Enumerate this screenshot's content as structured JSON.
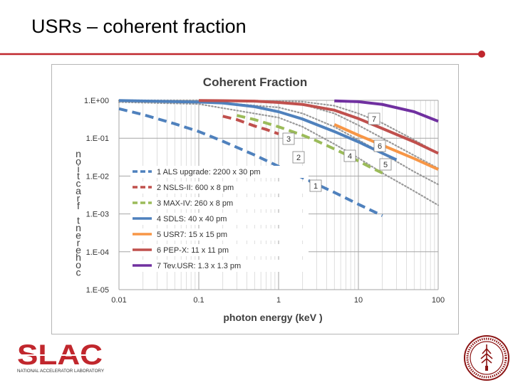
{
  "slide": {
    "title": "USRs – coherent fraction"
  },
  "colors": {
    "accent_rule": "#c0272d",
    "slac_red": "#c1272d"
  },
  "logos": {
    "slac_wordmark": "SLAC",
    "slac_subtitle": "NATIONAL ACCELERATOR LABORATORY"
  },
  "chart_data": {
    "type": "line",
    "title": "Coherent Fraction",
    "xlabel": "photon energy (keV )",
    "ylabel": "noitcarf tnerehoc",
    "x_scale": "log",
    "y_scale": "log",
    "xlim": [
      0.01,
      100
    ],
    "ylim": [
      1e-05,
      1
    ],
    "x_ticks": [
      "0.01",
      "0.1",
      "1",
      "10",
      "100"
    ],
    "y_ticks": [
      "1.E+00",
      "1.E-01",
      "1.E-02",
      "1.E-03",
      "1.E-04",
      "1.E-05"
    ],
    "grid": true,
    "legend_position": "left",
    "series": [
      {
        "name": "1 ALS upgrade: 2200 x 30 pm",
        "label": "1",
        "color": "#4f81bd",
        "style": "dashed",
        "x": [
          0.01,
          0.02,
          0.05,
          0.1,
          0.2,
          0.5,
          1,
          2,
          5,
          10,
          20
        ],
        "y": [
          0.6,
          0.42,
          0.24,
          0.15,
          0.083,
          0.036,
          0.018,
          0.009,
          0.0037,
          0.0018,
          0.0009
        ]
      },
      {
        "name": "2 NSLS-II: 600 x 8 pm",
        "label": "2",
        "color": "#c0504d",
        "style": "dashed",
        "x": [
          0.2,
          0.3,
          0.5,
          0.7,
          1
        ],
        "y": [
          0.38,
          0.31,
          0.21,
          0.17,
          0.13
        ]
      },
      {
        "name": "3 MAX-IV: 260 x 8 pm",
        "label": "3",
        "color": "#9bbb59",
        "style": "dashed",
        "x": [
          0.3,
          0.5,
          1,
          2,
          3,
          5,
          7,
          10,
          15,
          20
        ],
        "y": [
          0.4,
          0.31,
          0.2,
          0.12,
          0.085,
          0.052,
          0.037,
          0.025,
          0.016,
          0.012
        ]
      },
      {
        "name": "4 SDLS: 40 x 40 pm",
        "label": "4",
        "color": "#4f81bd",
        "style": "solid",
        "x": [
          0.01,
          0.1,
          0.2,
          0.5,
          1,
          2,
          5,
          10,
          20,
          30
        ],
        "y": [
          0.99,
          0.9,
          0.85,
          0.68,
          0.5,
          0.32,
          0.15,
          0.08,
          0.04,
          0.027
        ]
      },
      {
        "name": "5 USR7: 15 x 15 pm",
        "label": "5",
        "color": "#f79646",
        "style": "solid",
        "x": [
          5,
          10,
          20,
          50,
          100
        ],
        "y": [
          0.23,
          0.12,
          0.065,
          0.029,
          0.015
        ]
      },
      {
        "name": "6 PEP-X: 11 x 11 pm",
        "label": "6",
        "color": "#c0504d",
        "style": "solid",
        "x": [
          0.1,
          0.2,
          0.5,
          1,
          2,
          5,
          10,
          20,
          50,
          100
        ],
        "y": [
          0.99,
          0.98,
          0.95,
          0.88,
          0.78,
          0.55,
          0.33,
          0.18,
          0.08,
          0.04
        ]
      },
      {
        "name": "7 Tev.USR: 1.3 x 1.3 pm",
        "label": "7",
        "color": "#7030a0",
        "style": "solid",
        "x": [
          5,
          10,
          20,
          50,
          100
        ],
        "y": [
          0.97,
          0.92,
          0.78,
          0.5,
          0.28
        ]
      }
    ],
    "reference_curves": [
      {
        "x": [
          0.01,
          0.1,
          1,
          2,
          5,
          10,
          20,
          50,
          100
        ],
        "y": [
          0.9,
          0.8,
          0.35,
          0.2,
          0.07,
          0.03,
          0.012,
          0.004,
          0.0017
        ]
      },
      {
        "x": [
          0.01,
          0.1,
          1,
          2,
          5,
          10,
          20,
          50,
          100
        ],
        "y": [
          0.99,
          0.95,
          0.65,
          0.45,
          0.2,
          0.09,
          0.04,
          0.013,
          0.006
        ]
      },
      {
        "x": [
          0.01,
          0.1,
          1,
          2,
          5,
          10,
          20,
          50,
          100
        ],
        "y": [
          1,
          0.99,
          0.9,
          0.78,
          0.45,
          0.22,
          0.1,
          0.035,
          0.016
        ]
      },
      {
        "x": [
          0.01,
          0.1,
          1,
          2,
          5,
          10,
          20,
          50,
          100
        ],
        "y": [
          1,
          1,
          0.97,
          0.92,
          0.72,
          0.45,
          0.25,
          0.09,
          0.04
        ]
      }
    ]
  }
}
